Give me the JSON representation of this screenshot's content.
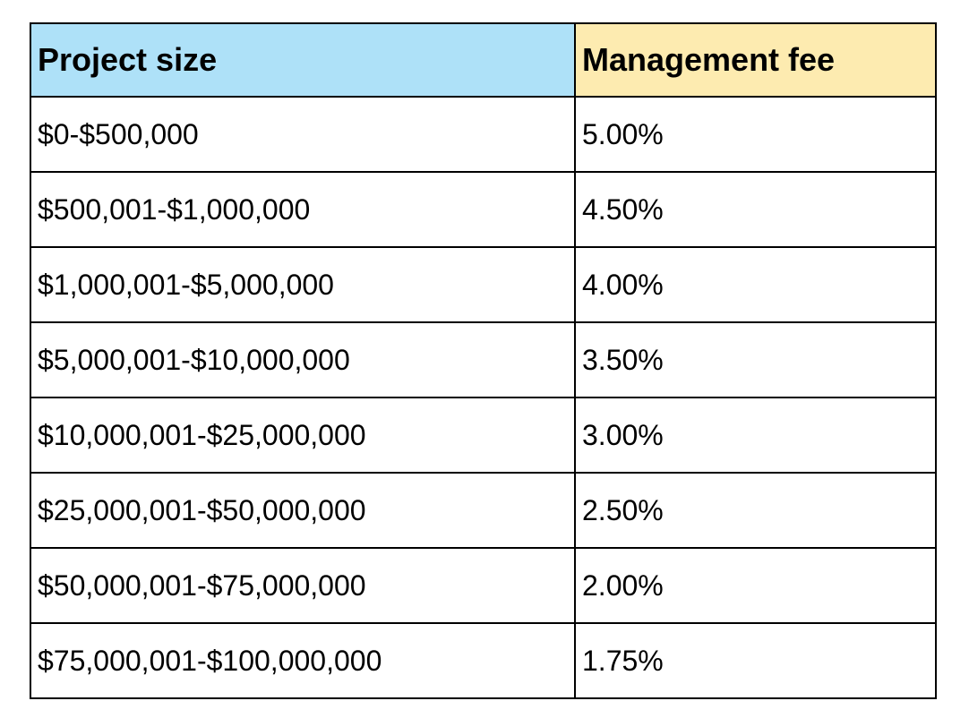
{
  "colors": {
    "header_project_size_bg": "#AEE1F8",
    "header_management_fee_bg": "#FDEBB0",
    "border": "#000000",
    "text": "#000000",
    "page_bg": "#ffffff"
  },
  "table": {
    "headers": {
      "project_size": "Project size",
      "management_fee": "Management fee"
    },
    "rows": [
      {
        "size": "$0-$500,000",
        "fee": "5.00%"
      },
      {
        "size": "$500,001-$1,000,000",
        "fee": "4.50%"
      },
      {
        "size": "$1,000,001-$5,000,000",
        "fee": "4.00%"
      },
      {
        "size": "$5,000,001-$10,000,000",
        "fee": "3.50%"
      },
      {
        "size": "$10,000,001-$25,000,000",
        "fee": "3.00%"
      },
      {
        "size": "$25,000,001-$50,000,000",
        "fee": "2.50%"
      },
      {
        "size": "$50,000,001-$75,000,000",
        "fee": "2.00%"
      },
      {
        "size": "$75,000,001-$100,000,000",
        "fee": "1.75%"
      }
    ]
  },
  "chart_data": {
    "type": "table",
    "title": "",
    "columns": [
      "Project size",
      "Management fee"
    ],
    "rows": [
      [
        "$0-$500,000",
        "5.00%"
      ],
      [
        "$500,001-$1,000,000",
        "4.50%"
      ],
      [
        "$1,000,001-$5,000,000",
        "4.00%"
      ],
      [
        "$5,000,001-$10,000,000",
        "3.50%"
      ],
      [
        "$10,000,001-$25,000,000",
        "3.00%"
      ],
      [
        "$25,000,001-$50,000,000",
        "2.50%"
      ],
      [
        "$50,000,001-$75,000,000",
        "2.00%"
      ],
      [
        "$75,000,001-$100,000,000",
        "1.75%"
      ]
    ],
    "fee_values_percent": [
      5.0,
      4.5,
      4.0,
      3.5,
      3.0,
      2.5,
      2.0,
      1.75
    ],
    "layout": {
      "header_row_colors": [
        "#AEE1F8",
        "#FDEBB0"
      ],
      "grid": true,
      "legend": "none"
    }
  }
}
